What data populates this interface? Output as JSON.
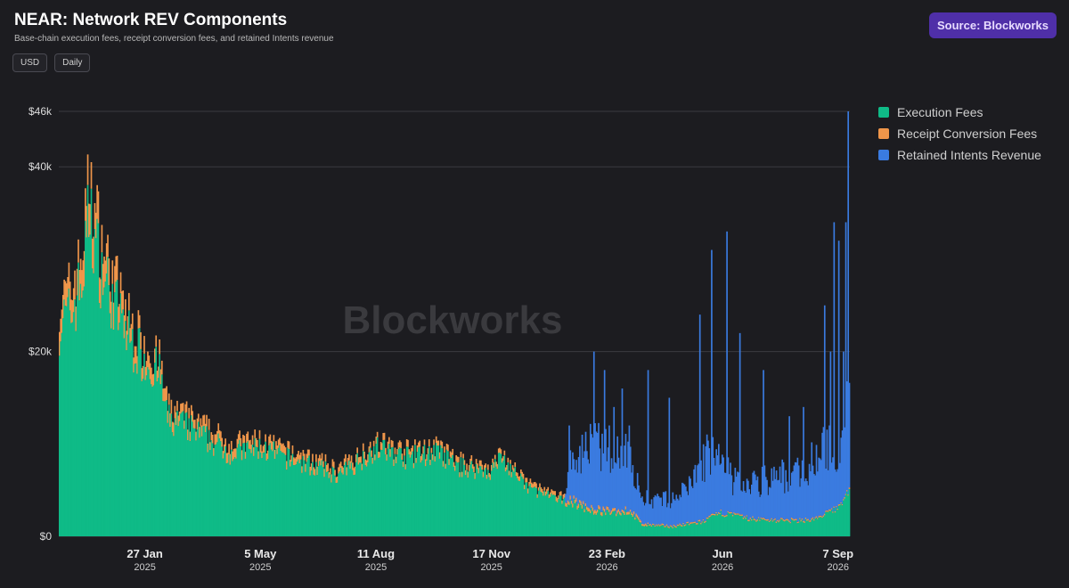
{
  "header": {
    "title": "NEAR: Network REV Components",
    "subtitle": "Base-chain execution fees, receipt conversion fees, and retained Intents revenue",
    "chips": [
      "USD",
      "Daily"
    ],
    "source_label": "Source: Blockworks"
  },
  "watermark": "Blockworks",
  "colors": {
    "execution": "#0fbb87",
    "receipt": "#f0964a",
    "intents": "#3a7be0",
    "grid": "#3a3a40",
    "background": "#1c1c20"
  },
  "chart_data": {
    "type": "bar",
    "stacked": true,
    "frequency": "daily",
    "ylim": [
      0,
      46000
    ],
    "yticks": [
      {
        "value": 0,
        "label": "$0"
      },
      {
        "value": 20000,
        "label": "$20k"
      },
      {
        "value": 40000,
        "label": "$40k"
      },
      {
        "value": 46000,
        "label": "$46k"
      }
    ],
    "xlim": [
      "2024-11-15",
      "2026-09-17"
    ],
    "xticks": [
      {
        "date": "2025-01-27",
        "label": "27 Jan",
        "sub": "2025"
      },
      {
        "date": "2025-05-05",
        "label": "5 May",
        "sub": "2025"
      },
      {
        "date": "2025-08-11",
        "label": "11 Aug",
        "sub": "2025"
      },
      {
        "date": "2025-11-17",
        "label": "17 Nov",
        "sub": "2025"
      },
      {
        "date": "2026-02-23",
        "label": "23 Feb",
        "sub": "2026"
      },
      {
        "date": "2026-06-01",
        "label": "Jun",
        "sub": "2026"
      },
      {
        "date": "2026-09-07",
        "label": "7 Sep",
        "sub": "2026"
      }
    ],
    "legend": {
      "placement": "right"
    },
    "series": [
      {
        "name": "Execution Fees",
        "color": "#0fbb87",
        "points": [
          [
            "2024-11-15",
            23000
          ],
          [
            "2024-11-25",
            24000
          ],
          [
            "2024-12-05",
            28000
          ],
          [
            "2024-12-10",
            35000
          ],
          [
            "2024-12-20",
            29000
          ],
          [
            "2025-01-01",
            25000
          ],
          [
            "2025-01-15",
            21000
          ],
          [
            "2025-01-27",
            19000
          ],
          [
            "2025-02-08",
            17500
          ],
          [
            "2025-02-15",
            12500
          ],
          [
            "2025-03-01",
            12000
          ],
          [
            "2025-03-20",
            10500
          ],
          [
            "2025-04-10",
            9000
          ],
          [
            "2025-05-05",
            9500
          ],
          [
            "2025-05-25",
            8500
          ],
          [
            "2025-06-20",
            7500
          ],
          [
            "2025-07-10",
            6500
          ],
          [
            "2025-08-11",
            9500
          ],
          [
            "2025-09-05",
            8500
          ],
          [
            "2025-10-01",
            9000
          ],
          [
            "2025-10-20",
            7500
          ],
          [
            "2025-11-17",
            7000
          ],
          [
            "2025-11-25",
            8500
          ],
          [
            "2025-12-15",
            5500
          ],
          [
            "2026-01-10",
            4000
          ],
          [
            "2026-01-25",
            3600
          ],
          [
            "2026-02-10",
            2700
          ],
          [
            "2026-02-23",
            2500
          ],
          [
            "2026-03-15",
            2600
          ],
          [
            "2026-03-25",
            1200
          ],
          [
            "2026-04-20",
            1000
          ],
          [
            "2026-05-15",
            1500
          ],
          [
            "2026-06-01",
            2500
          ],
          [
            "2026-06-25",
            1800
          ],
          [
            "2026-08-01",
            1600
          ],
          [
            "2026-08-20",
            1800
          ],
          [
            "2026-09-07",
            3000
          ],
          [
            "2026-09-15",
            4500
          ]
        ]
      },
      {
        "name": "Receipt Conversion Fees",
        "color": "#f0964a",
        "points": [
          [
            "2024-11-15",
            2200
          ],
          [
            "2024-12-10",
            3500
          ],
          [
            "2025-01-15",
            1800
          ],
          [
            "2025-03-01",
            1100
          ],
          [
            "2025-06-01",
            800
          ],
          [
            "2025-09-01",
            700
          ],
          [
            "2025-12-01",
            500
          ],
          [
            "2026-02-01",
            400
          ],
          [
            "2026-03-20",
            300
          ],
          [
            "2026-04-01",
            150
          ],
          [
            "2026-09-15",
            150
          ]
        ]
      },
      {
        "name": "Retained Intents Revenue",
        "color": "#3a7be0",
        "points": [
          [
            "2024-11-15",
            0
          ],
          [
            "2026-01-18",
            0
          ],
          [
            "2026-01-22",
            3500
          ],
          [
            "2026-02-01",
            5000
          ],
          [
            "2026-02-10",
            7000
          ],
          [
            "2026-02-23",
            6500
          ],
          [
            "2026-03-10",
            7000
          ],
          [
            "2026-03-22",
            3000
          ],
          [
            "2026-04-10",
            2500
          ],
          [
            "2026-05-01",
            3500
          ],
          [
            "2026-05-20",
            7000
          ],
          [
            "2026-06-10",
            3500
          ],
          [
            "2026-07-01",
            4000
          ],
          [
            "2026-08-01",
            5000
          ],
          [
            "2026-08-25",
            7000
          ],
          [
            "2026-09-07",
            6000
          ],
          [
            "2026-09-15",
            9000
          ]
        ],
        "spikes": [
          [
            "2026-01-22",
            12000
          ],
          [
            "2026-02-02",
            11000
          ],
          [
            "2026-02-12",
            20000
          ],
          [
            "2026-02-21",
            18000
          ],
          [
            "2026-03-01",
            14000
          ],
          [
            "2026-03-08",
            16000
          ],
          [
            "2026-03-14",
            12000
          ],
          [
            "2026-03-30",
            18000
          ],
          [
            "2026-04-17",
            15000
          ],
          [
            "2026-05-13",
            24000
          ],
          [
            "2026-05-23",
            31000
          ],
          [
            "2026-06-05",
            33000
          ],
          [
            "2026-06-16",
            22000
          ],
          [
            "2026-07-06",
            18000
          ],
          [
            "2026-07-28",
            13000
          ],
          [
            "2026-08-09",
            14000
          ],
          [
            "2026-08-27",
            25000
          ],
          [
            "2026-09-01",
            20000
          ],
          [
            "2026-09-04",
            34000
          ],
          [
            "2026-09-08",
            32000
          ],
          [
            "2026-09-12",
            20000
          ],
          [
            "2026-09-14",
            34000
          ],
          [
            "2026-09-16",
            46000
          ]
        ]
      }
    ]
  }
}
